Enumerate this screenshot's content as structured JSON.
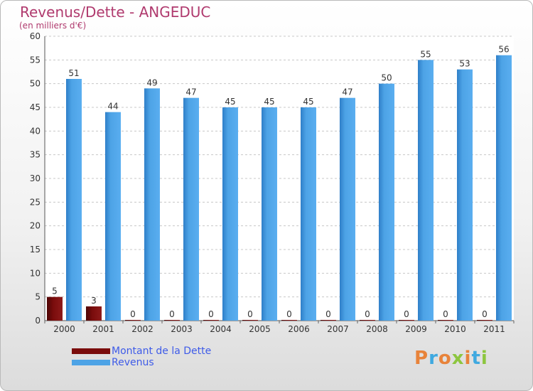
{
  "title": "Revenus/Dette - ANGEDUC",
  "subtitle": "(en milliers d'€)",
  "colors": {
    "dette": "#7a0c0c",
    "revenus": "#4da3e6",
    "title": "#b03a6e",
    "legend_text": "#3e5be8"
  },
  "chart_data": {
    "type": "bar",
    "title": "Revenus/Dette - ANGEDUC",
    "subtitle": "(en milliers d'€)",
    "categories": [
      "2000",
      "2001",
      "2002",
      "2003",
      "2004",
      "2005",
      "2006",
      "2007",
      "2008",
      "2009",
      "2010",
      "2011"
    ],
    "series": [
      {
        "name": "Montant de la Dette",
        "values": [
          5,
          3,
          0,
          0,
          0,
          0,
          0,
          0,
          0,
          0,
          0,
          0
        ]
      },
      {
        "name": "Revenus",
        "values": [
          51,
          44,
          49,
          47,
          45,
          45,
          45,
          47,
          50,
          55,
          53,
          56
        ]
      }
    ],
    "ylim": [
      0,
      60
    ],
    "yticks": [
      0,
      5,
      10,
      15,
      20,
      25,
      30,
      35,
      40,
      45,
      50,
      55,
      60
    ],
    "grid": true,
    "legend_position": "bottom-left"
  },
  "legend": {
    "items": [
      {
        "label": "Montant de la Dette"
      },
      {
        "label": "Revenus"
      }
    ]
  },
  "logo": {
    "text": "Proxiti",
    "letter_colors": [
      "#e8833a",
      "#3fa9e0",
      "#e8833a",
      "#8dc63f",
      "#e8833a",
      "#3fa9e0",
      "#8dc63f"
    ]
  }
}
